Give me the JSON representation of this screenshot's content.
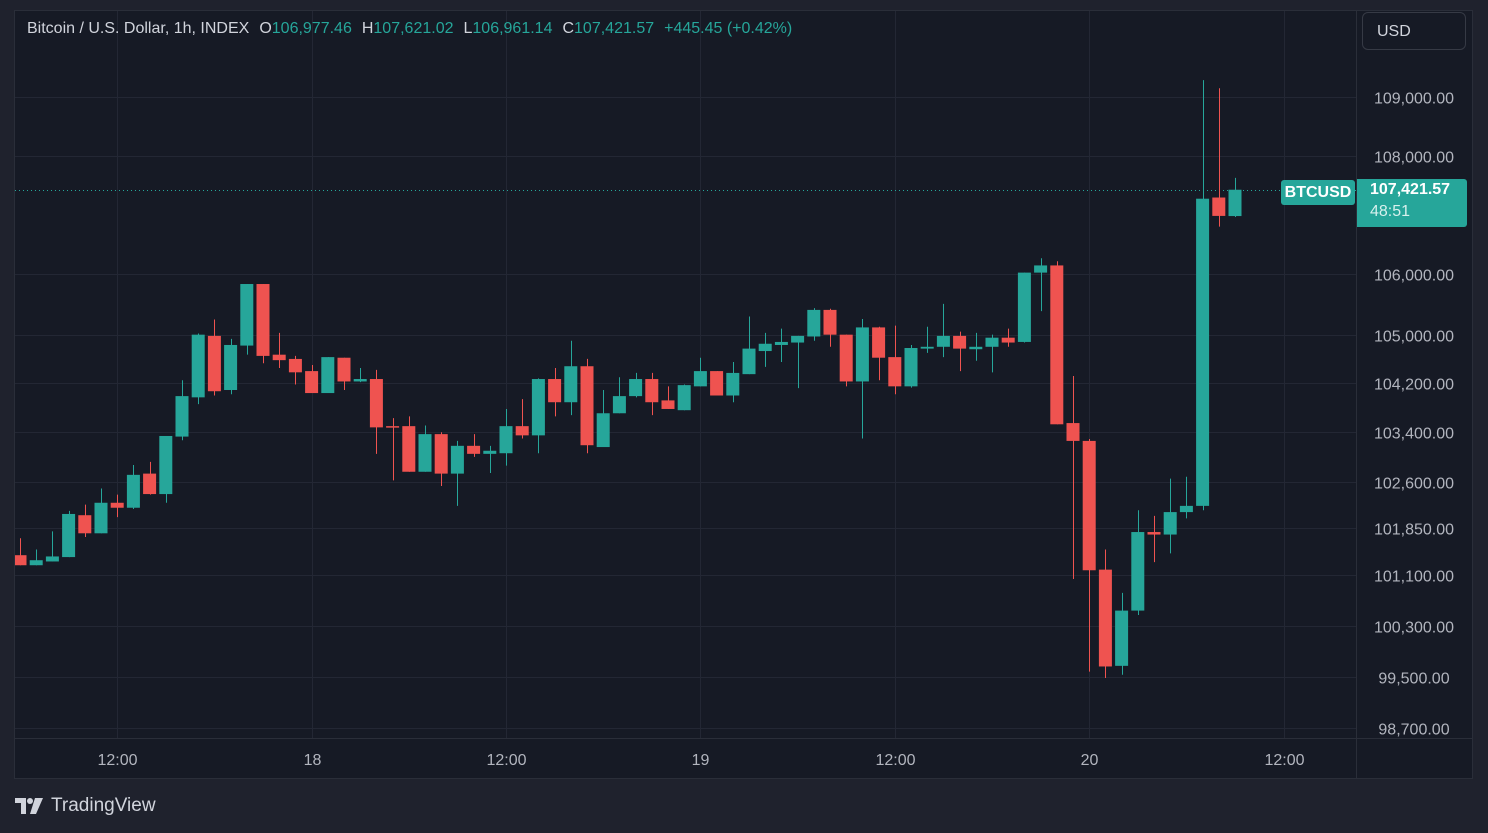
{
  "legend": {
    "title": "Bitcoin / U.S. Dollar, 1h, INDEX",
    "open_label": "O",
    "open": "106,977.46",
    "high_label": "H",
    "high": "107,621.02",
    "low_label": "L",
    "low": "106,961.14",
    "close_label": "C",
    "close": "107,421.57",
    "change": "+445.45 (+0.42%)"
  },
  "currency_button": "USD",
  "last_price": {
    "symbol": "BTCUSD",
    "price": "107,421.57",
    "countdown": "48:51"
  },
  "branding": {
    "logo_text": "TradingView"
  },
  "colors": {
    "up": "#26a69a",
    "down": "#ef5350",
    "background": "#161a25",
    "grid": "#232734",
    "axis_text": "#b2b5be"
  },
  "chart_data": {
    "type": "candlestick",
    "symbol": "BTCUSD",
    "interval": "1h",
    "scale": "log",
    "ylim": [
      98300,
      109600
    ],
    "y_ticks": [
      {
        "value": 109000,
        "label": "109,000.00"
      },
      {
        "value": 108000,
        "label": "108,000.00"
      },
      {
        "value": 106000,
        "label": "106,000.00"
      },
      {
        "value": 105000,
        "label": "105,000.00"
      },
      {
        "value": 104200,
        "label": "104,200.00"
      },
      {
        "value": 103400,
        "label": "103,400.00"
      },
      {
        "value": 102600,
        "label": "102,600.00"
      },
      {
        "value": 101850,
        "label": "101,850.00"
      },
      {
        "value": 101100,
        "label": "101,100.00"
      },
      {
        "value": 100300,
        "label": "100,300.00"
      },
      {
        "value": 99500,
        "label": "99,500.00"
      },
      {
        "value": 98700,
        "label": "98,700.00"
      }
    ],
    "x_ticks": [
      {
        "bar": 6,
        "label": "12:00"
      },
      {
        "bar": 18,
        "label": "18"
      },
      {
        "bar": 30,
        "label": "12:00"
      },
      {
        "bar": 42,
        "label": "19"
      },
      {
        "bar": 54,
        "label": "12:00"
      },
      {
        "bar": 66,
        "label": "20"
      },
      {
        "bar": 78,
        "label": "12:00"
      }
    ],
    "ohlc_columns": [
      "open",
      "high",
      "low",
      "close"
    ],
    "ohlc": [
      [
        101420,
        101690,
        101260,
        101260
      ],
      [
        101260,
        101510,
        101260,
        101340
      ],
      [
        101320,
        101800,
        101320,
        101400
      ],
      [
        101390,
        102130,
        101390,
        102080
      ],
      [
        102060,
        102230,
        101710,
        101770
      ],
      [
        101770,
        102490,
        101770,
        102260
      ],
      [
        102260,
        102390,
        102030,
        102180
      ],
      [
        102180,
        102870,
        102160,
        102710
      ],
      [
        102730,
        102920,
        102390,
        102400
      ],
      [
        102400,
        103340,
        102260,
        103340
      ],
      [
        103330,
        104250,
        103270,
        103990
      ],
      [
        103970,
        105020,
        103860,
        105000
      ],
      [
        104980,
        105250,
        104000,
        104070
      ],
      [
        104090,
        104930,
        104020,
        104830
      ],
      [
        104820,
        105840,
        104670,
        105840
      ],
      [
        105840,
        105840,
        104530,
        104650
      ],
      [
        104670,
        105030,
        104450,
        104580
      ],
      [
        104600,
        104650,
        104180,
        104380
      ],
      [
        104400,
        104500,
        104040,
        104040
      ],
      [
        104040,
        104630,
        104040,
        104630
      ],
      [
        104620,
        104620,
        104090,
        104230
      ],
      [
        104230,
        104450,
        104220,
        104270
      ],
      [
        104270,
        104420,
        103050,
        103480
      ],
      [
        103500,
        103630,
        102620,
        103480
      ],
      [
        103500,
        103660,
        102760,
        102760
      ],
      [
        102760,
        103510,
        102760,
        103370
      ],
      [
        103370,
        103400,
        102530,
        102730
      ],
      [
        102730,
        103260,
        102210,
        103180
      ],
      [
        103180,
        103370,
        103000,
        103050
      ],
      [
        103050,
        103180,
        102740,
        103100
      ],
      [
        103060,
        103780,
        102860,
        103500
      ],
      [
        103500,
        103940,
        103300,
        103350
      ],
      [
        103350,
        104280,
        103060,
        104270
      ],
      [
        104270,
        104450,
        103660,
        103890
      ],
      [
        103890,
        104900,
        103680,
        104480
      ],
      [
        104480,
        104600,
        103060,
        103190
      ],
      [
        103160,
        104090,
        103160,
        103710
      ],
      [
        103710,
        104300,
        103710,
        103990
      ],
      [
        103990,
        104370,
        103970,
        104270
      ],
      [
        104270,
        104370,
        103680,
        103890
      ],
      [
        103920,
        104150,
        103780,
        103780
      ],
      [
        103760,
        104180,
        103760,
        104170
      ],
      [
        104150,
        104620,
        104150,
        104400
      ],
      [
        104400,
        104400,
        104000,
        104000
      ],
      [
        104000,
        104550,
        103890,
        104370
      ],
      [
        104350,
        105300,
        104350,
        104770
      ],
      [
        104730,
        105030,
        104470,
        104850
      ],
      [
        104830,
        105100,
        104550,
        104880
      ],
      [
        104870,
        104980,
        104120,
        104980
      ],
      [
        104970,
        105440,
        104900,
        105410
      ],
      [
        105410,
        105430,
        104800,
        105000
      ],
      [
        105000,
        105000,
        104150,
        104230
      ],
      [
        104230,
        105260,
        103300,
        105120
      ],
      [
        105120,
        105130,
        104250,
        104620
      ],
      [
        104630,
        105150,
        104020,
        104150
      ],
      [
        104150,
        104830,
        104130,
        104780
      ],
      [
        104770,
        105130,
        104700,
        104800
      ],
      [
        104800,
        105510,
        104630,
        104980
      ],
      [
        104980,
        105050,
        104400,
        104770
      ],
      [
        104760,
        105030,
        104570,
        104800
      ],
      [
        104800,
        105000,
        104380,
        104950
      ],
      [
        104950,
        105100,
        104800,
        104870
      ],
      [
        104880,
        106030,
        104870,
        106030
      ],
      [
        106030,
        106270,
        105390,
        106150
      ],
      [
        106150,
        106220,
        103530,
        103530
      ],
      [
        103550,
        104320,
        101040,
        103260
      ],
      [
        103260,
        103290,
        99580,
        101180
      ],
      [
        101190,
        101510,
        99480,
        99660
      ],
      [
        99670,
        100820,
        99530,
        100540
      ],
      [
        100540,
        102140,
        100470,
        101790
      ],
      [
        101790,
        102050,
        101310,
        101750
      ],
      [
        101750,
        102650,
        101450,
        102110
      ],
      [
        102110,
        102680,
        102010,
        102210
      ],
      [
        102210,
        109290,
        102140,
        107270
      ],
      [
        107290,
        109150,
        106800,
        106980
      ],
      [
        106977.46,
        107621.02,
        106961.14,
        107421.57
      ]
    ],
    "last_close": 107421.57,
    "grid": true
  }
}
